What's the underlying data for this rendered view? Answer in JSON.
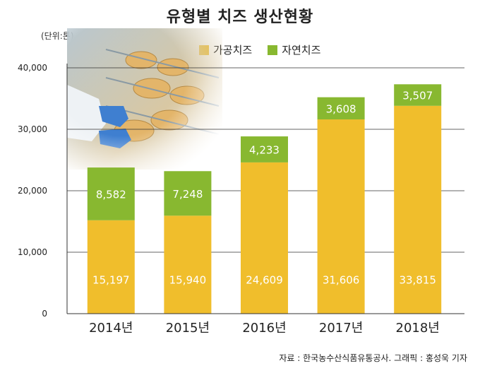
{
  "title": "유형별 치즈 생산현황",
  "unit_label": "(단위:톤)",
  "source": "자료 : 한국농수산식품유통공사. 그래픽 : 홍성욱 기자",
  "colors": {
    "processed": "#F0BE2C",
    "natural": "#88B830"
  },
  "photo": "cheese-factory-photo",
  "chart_data": {
    "type": "bar",
    "stacked": true,
    "categories": [
      "2014년",
      "2015년",
      "2016년",
      "2017년",
      "2018년"
    ],
    "series": [
      {
        "name": "가공치즈",
        "values": [
          15197,
          15940,
          24609,
          31606,
          33815
        ],
        "labels": [
          "15,197",
          "15,940",
          "24,609",
          "31,606",
          "33,815"
        ]
      },
      {
        "name": "자연치즈",
        "values": [
          8582,
          7248,
          4233,
          3608,
          3507
        ],
        "labels": [
          "8,582",
          "7,248",
          "4,233",
          "3,608",
          "3,507"
        ]
      }
    ],
    "ylim": [
      0,
      40000
    ],
    "yticks": [
      0,
      10000,
      20000,
      30000,
      40000
    ],
    "ytick_labels": [
      "0",
      "10,000",
      "20,000",
      "30,000",
      "40,000"
    ],
    "grid": true,
    "legend": "top"
  }
}
